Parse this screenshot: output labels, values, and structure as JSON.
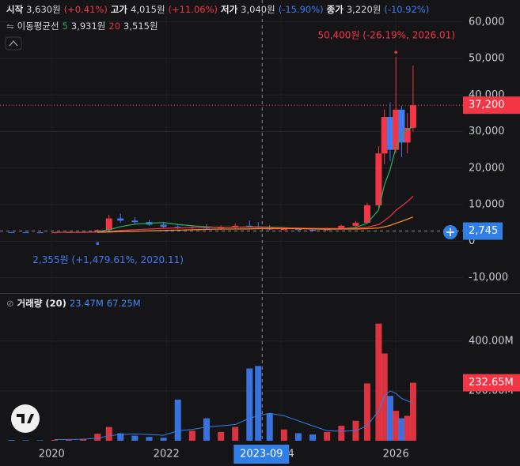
{
  "chart_data": {
    "type": "candlestick",
    "ohlc_legend": [
      {
        "label": "시작",
        "value": "3,630원",
        "change": "(+0.41%)",
        "color": "#f23645"
      },
      {
        "label": "고가",
        "value": "4,015원",
        "change": "(+11.06%)",
        "color": "#f23645"
      },
      {
        "label": "저가",
        "value": "3,040원",
        "change": "(-15.90%)",
        "color": "#3d7cf5"
      },
      {
        "label": "종가",
        "value": "3,220원",
        "change": "(-10.92%)",
        "color": "#3d7cf5"
      }
    ],
    "ma_legend": {
      "title": "이동평균선"
    },
    "x": [
      2019.3,
      2019.55,
      2019.8,
      2020.05,
      2020.3,
      2020.55,
      2020.8,
      2021.0,
      2021.2,
      2021.45,
      2021.7,
      2021.95,
      2022.2,
      2022.45,
      2022.7,
      2022.95,
      2023.2,
      2023.45,
      2023.6,
      2023.8,
      2024.05,
      2024.3,
      2024.55,
      2024.8,
      2025.05,
      2025.3,
      2025.5,
      2025.7,
      2025.8,
      2025.9,
      2026.0,
      2026.1,
      2026.2,
      2026.3
    ],
    "candles": {
      "open": [
        2450,
        2420,
        2400,
        2380,
        2390,
        2420,
        2500,
        3000,
        6200,
        5600,
        5200,
        4500,
        3900,
        3600,
        3800,
        3500,
        3900,
        4200,
        4000,
        3700,
        3200,
        3300,
        3100,
        3000,
        3400,
        4200,
        5000,
        9800,
        24000,
        34000,
        25000,
        36000,
        27000,
        31000
      ],
      "high": [
        2500,
        2480,
        2450,
        2420,
        2450,
        2600,
        3200,
        7200,
        7500,
        6500,
        5800,
        5200,
        4500,
        4200,
        4600,
        4300,
        4800,
        5600,
        5200,
        4300,
        3800,
        3700,
        3600,
        3700,
        4500,
        5500,
        10500,
        26000,
        36000,
        38000,
        50400,
        37000,
        35000,
        48000
      ],
      "low": [
        2400,
        2380,
        2360,
        2370,
        2360,
        2400,
        2355,
        2900,
        5000,
        4800,
        4200,
        3600,
        3300,
        3200,
        3300,
        3100,
        3400,
        3600,
        3500,
        3000,
        2900,
        2900,
        2800,
        2800,
        3200,
        3800,
        4800,
        9000,
        21000,
        22000,
        24000,
        23000,
        24000,
        30000
      ],
      "close": [
        2420,
        2400,
        2380,
        2390,
        2420,
        2500,
        3000,
        6200,
        5600,
        5200,
        4500,
        3900,
        3600,
        3800,
        3500,
        3900,
        4200,
        4000,
        3700,
        3200,
        3300,
        3100,
        3000,
        3400,
        4200,
        5000,
        9800,
        24000,
        34000,
        25000,
        36000,
        27000,
        31000,
        37200
      ],
      "up_color": "#f23645",
      "down_color": "#3d7cf5"
    },
    "ma": [
      {
        "name": "5",
        "value_label": "3,931원",
        "color": "#26a65b",
        "values": [
          null,
          null,
          null,
          null,
          2400,
          2420,
          2540,
          3140,
          3940,
          4620,
          4900,
          5080,
          4560,
          4200,
          3900,
          3740,
          3800,
          3900,
          3880,
          3840,
          3680,
          3500,
          3320,
          3200,
          3400,
          3760,
          4880,
          8520,
          15400,
          19560,
          25560,
          29200,
          30600,
          31240
        ]
      },
      {
        "name": "20",
        "value_label": "3,515원",
        "color": "#e0323f",
        "values": [
          null,
          null,
          null,
          2420,
          2410,
          2420,
          2460,
          2650,
          2900,
          3100,
          3300,
          3500,
          3600,
          3700,
          3750,
          3750,
          3800,
          3800,
          3780,
          3700,
          3600,
          3550,
          3500,
          3450,
          3450,
          3500,
          3800,
          4500,
          5600,
          6800,
          8400,
          9600,
          10800,
          12300
        ]
      },
      {
        "color": "#f08a24",
        "values": [
          null,
          null,
          null,
          null,
          null,
          null,
          2400,
          2500,
          2600,
          2700,
          2800,
          2900,
          3000,
          3100,
          3200,
          3300,
          3300,
          3350,
          3400,
          3400,
          3400,
          3400,
          3350,
          3300,
          3300,
          3300,
          3400,
          3600,
          3900,
          4300,
          4900,
          5400,
          6000,
          6600
        ]
      }
    ],
    "xlim": [
      2019.1,
      2027.17
    ],
    "xticks": [
      2020,
      2022,
      2024,
      2026
    ],
    "ylim": [
      -14000,
      66000
    ],
    "yticks": [
      {
        "value": 60000,
        "label": "60,000"
      },
      {
        "value": 50000,
        "label": "50,000"
      },
      {
        "value": 40000,
        "label": "40,000"
      },
      {
        "value": 30000,
        "label": "30,000"
      },
      {
        "value": 20000,
        "label": "20,000"
      },
      {
        "value": 10000,
        "label": "10,000"
      },
      0,
      {
        "value": -10000,
        "label": "-10,000"
      }
    ],
    "last_price": {
      "value": 37200,
      "label": "37,200"
    },
    "crosshair": {
      "value": 2745,
      "label": "2,745",
      "x": 2023.67,
      "x_label": "2023-09"
    },
    "annotations": [
      {
        "x": 2026.0,
        "value": 50400,
        "label": "50,400원 (-26.19%, 2026.01)",
        "color": "#f23645"
      },
      {
        "x": 2020.8,
        "value": 2355,
        "label": "2,355원 (+1,479.61%, 2020.11)",
        "color": "#3d7cf5"
      }
    ],
    "volume": {
      "title": "거래량 (20)",
      "legend_values": [
        "23.47M",
        "67.25M"
      ],
      "values": [
        3000000,
        2000000,
        2000000,
        3000000,
        3000000,
        8000000,
        28000000,
        55000000,
        30000000,
        20000000,
        15000000,
        12000000,
        165000000,
        40000000,
        90000000,
        35000000,
        55000000,
        290000000,
        300000000,
        110000000,
        45000000,
        30000000,
        25000000,
        35000000,
        60000000,
        80000000,
        230000000,
        470000000,
        350000000,
        180000000,
        120000000,
        90000000,
        100000000,
        232650000
      ],
      "ma_color": "#2f7fe6",
      "ma_values": [
        null,
        null,
        null,
        5000000,
        5000000,
        6000000,
        10000000,
        20000000,
        25000000,
        27000000,
        25000000,
        22000000,
        40000000,
        45000000,
        55000000,
        60000000,
        65000000,
        90000000,
        100000000,
        110000000,
        100000000,
        80000000,
        60000000,
        40000000,
        38000000,
        40000000,
        60000000,
        120000000,
        180000000,
        200000000,
        190000000,
        170000000,
        160000000,
        150000000
      ],
      "ylim": [
        0,
        580000000
      ],
      "yticks": [
        {
          "value": 200000000,
          "label": "200.00M"
        },
        {
          "value": 400000000,
          "label": "400.00M"
        }
      ],
      "last": {
        "value": 232650000,
        "label": "232.65M"
      }
    }
  }
}
